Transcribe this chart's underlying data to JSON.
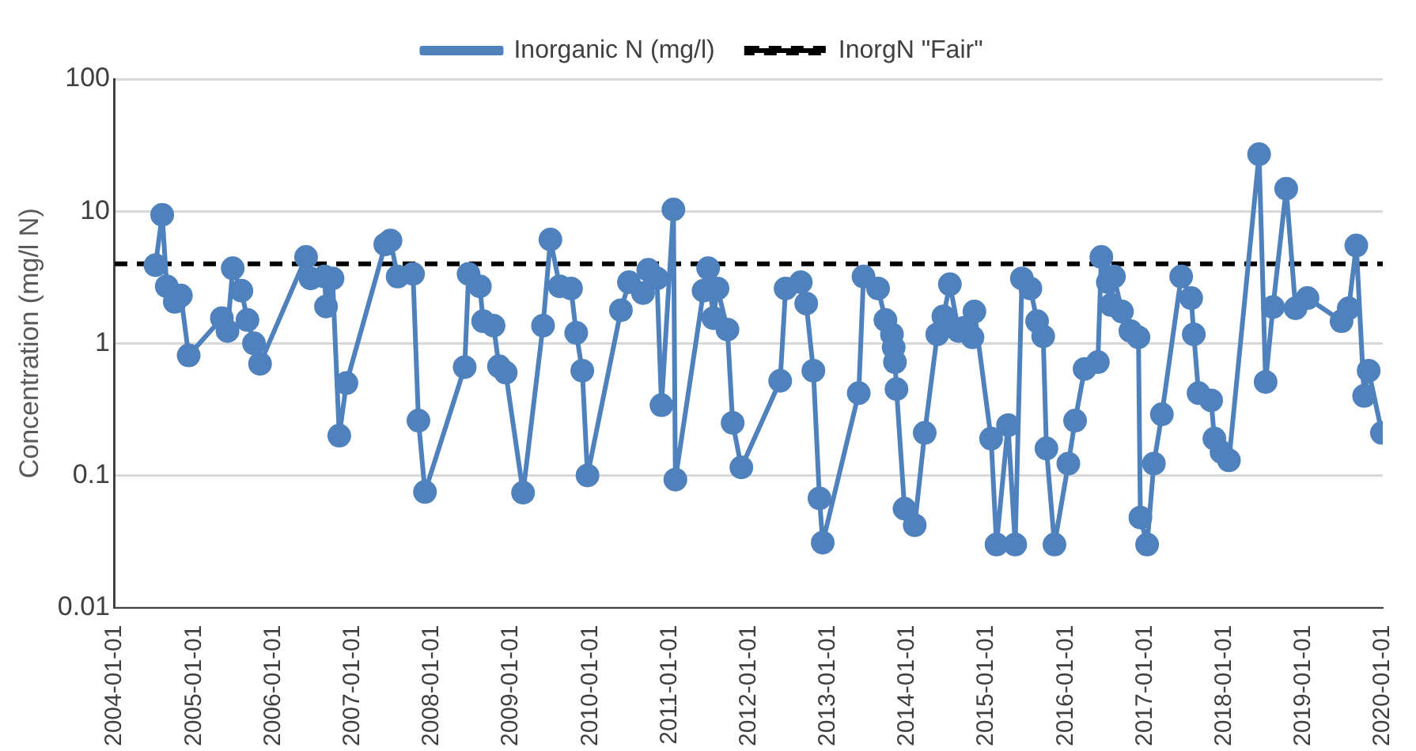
{
  "chart_data": {
    "type": "line",
    "ylabel": "Concentration (mg/l N)",
    "x": [
      "2004-07-07",
      "2004-08-07",
      "2004-08-28",
      "2004-10-04",
      "2004-11-01",
      "2004-12-07",
      "2005-05-09",
      "2005-06-04",
      "2005-06-28",
      "2005-08-07",
      "2005-09-04",
      "2005-10-04",
      "2005-11-01",
      "2006-06-01",
      "2006-06-22",
      "2006-08-25",
      "2006-09-01",
      "2006-10-01",
      "2006-11-01",
      "2006-12-04",
      "2007-06-01",
      "2007-06-25",
      "2007-07-28",
      "2007-10-07",
      "2007-11-01",
      "2007-12-01",
      "2008-06-01",
      "2008-06-19",
      "2008-08-10",
      "2008-08-25",
      "2008-10-12",
      "2008-11-06",
      "2008-12-07",
      "2009-02-25",
      "2009-05-28",
      "2009-07-01",
      "2009-08-13",
      "2009-10-04",
      "2009-10-28",
      "2009-11-25",
      "2009-12-19",
      "2010-05-22",
      "2010-06-28",
      "2010-09-01",
      "2010-09-25",
      "2010-11-04",
      "2010-11-25",
      "2011-01-19",
      "2011-01-28",
      "2011-06-07",
      "2011-06-28",
      "2011-07-22",
      "2011-08-10",
      "2011-09-25",
      "2011-10-19",
      "2011-11-28",
      "2012-05-25",
      "2012-06-19",
      "2012-08-28",
      "2012-09-22",
      "2012-10-25",
      "2012-11-22",
      "2012-12-07",
      "2013-05-22",
      "2013-06-13",
      "2013-08-19",
      "2013-09-22",
      "2013-10-22",
      "2013-10-30",
      "2013-11-05",
      "2013-11-12",
      "2013-12-19",
      "2014-02-04",
      "2014-03-22",
      "2014-05-19",
      "2014-06-16",
      "2014-07-16",
      "2014-08-25",
      "2014-09-19",
      "2014-10-28",
      "2014-11-06",
      "2015-01-22",
      "2015-02-16",
      "2015-04-10",
      "2015-05-13",
      "2015-06-13",
      "2015-07-22",
      "2015-08-22",
      "2015-09-19",
      "2015-10-04",
      "2015-11-10",
      "2016-01-13",
      "2016-02-13",
      "2016-03-28",
      "2016-05-28",
      "2016-06-13",
      "2016-07-13",
      "2016-07-28",
      "2016-08-10",
      "2016-09-16",
      "2016-10-25",
      "2016-12-01",
      "2016-12-10",
      "2017-01-10",
      "2017-02-10",
      "2017-03-19",
      "2017-06-16",
      "2017-08-01",
      "2017-08-13",
      "2017-09-04",
      "2017-11-01",
      "2017-11-16",
      "2017-12-19",
      "2018-01-22",
      "2018-06-10",
      "2018-07-10",
      "2018-08-13",
      "2018-10-13",
      "2018-11-25",
      "2019-01-19",
      "2019-06-25",
      "2019-07-28",
      "2019-09-01",
      "2019-10-07",
      "2019-10-28",
      "2019-12-28"
    ],
    "series": [
      {
        "name": "Inorganic N (mg/l)",
        "color": "#4f81bd",
        "values": [
          3.9,
          9.4,
          2.7,
          2.06,
          2.3,
          0.81,
          1.55,
          1.24,
          3.7,
          2.5,
          1.5,
          1.0,
          0.7,
          4.5,
          3.1,
          3.2,
          1.9,
          3.1,
          0.2,
          0.5,
          5.6,
          6.0,
          3.2,
          3.35,
          0.26,
          0.075,
          0.66,
          3.35,
          2.7,
          1.47,
          1.36,
          0.67,
          0.6,
          0.074,
          1.36,
          6.1,
          2.7,
          2.6,
          1.2,
          0.62,
          0.1,
          1.78,
          2.9,
          2.4,
          3.6,
          3.1,
          0.34,
          10.3,
          0.093,
          2.5,
          3.7,
          1.55,
          2.6,
          1.27,
          0.25,
          0.115,
          0.52,
          2.6,
          2.9,
          2.0,
          0.62,
          0.067,
          0.031,
          0.42,
          3.2,
          2.6,
          1.5,
          1.17,
          0.93,
          0.72,
          0.45,
          0.056,
          0.042,
          0.21,
          1.17,
          1.6,
          2.8,
          1.24,
          1.31,
          1.11,
          1.74,
          0.19,
          0.03,
          0.24,
          0.03,
          3.1,
          2.6,
          1.47,
          1.13,
          0.16,
          0.03,
          0.123,
          0.26,
          0.64,
          0.72,
          4.5,
          2.9,
          1.95,
          3.2,
          1.74,
          1.24,
          1.11,
          0.048,
          0.03,
          0.123,
          0.29,
          3.2,
          2.2,
          1.17,
          0.42,
          0.37,
          0.19,
          0.15,
          0.13,
          27,
          0.51,
          1.88,
          14.8,
          1.84,
          2.2,
          1.47,
          1.84,
          5.5,
          0.4,
          0.62,
          0.21
        ]
      }
    ],
    "ref_lines": [
      {
        "axis": "y",
        "value": 4,
        "label": "InorgN \"Fair\"",
        "color": "#000000",
        "line_style": "dashed"
      }
    ],
    "xlim": [
      "2004-01-01",
      "2020-01-01"
    ],
    "xticks": [
      "2004-01-01",
      "2005-01-01",
      "2006-01-01",
      "2007-01-01",
      "2008-01-01",
      "2009-01-01",
      "2010-01-01",
      "2011-01-01",
      "2012-01-01",
      "2013-01-01",
      "2014-01-01",
      "2015-01-01",
      "2016-01-01",
      "2017-01-01",
      "2018-01-01",
      "2019-01-01",
      "2020-01-01"
    ],
    "ylim": [
      0.01,
      100
    ],
    "yticks": [
      0.01,
      0.1,
      1,
      10,
      100
    ],
    "log": "y",
    "grid": "y",
    "legend": "top",
    "marker": "circle",
    "line_style": "solid"
  }
}
